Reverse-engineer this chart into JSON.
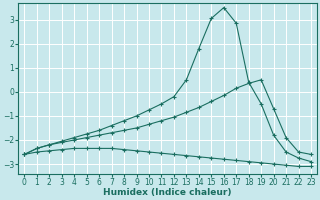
{
  "xlabel": "Humidex (Indice chaleur)",
  "bg_color": "#c8e8ec",
  "grid_color": "#b0d8dc",
  "line_color": "#1a6e60",
  "xlim": [
    -0.5,
    23.5
  ],
  "ylim": [
    -3.4,
    3.7
  ],
  "xticks": [
    0,
    1,
    2,
    3,
    4,
    5,
    6,
    7,
    8,
    9,
    10,
    11,
    12,
    13,
    14,
    15,
    16,
    17,
    18,
    19,
    20,
    21,
    22,
    23
  ],
  "yticks": [
    -3,
    -2,
    -1,
    0,
    1,
    2,
    3
  ],
  "line1_x": [
    0,
    1,
    2,
    3,
    4,
    5,
    6,
    7,
    8,
    9,
    10,
    11,
    12,
    13,
    14,
    15,
    16,
    17,
    18,
    19,
    20,
    21,
    22,
    23
  ],
  "line1_y": [
    -2.6,
    -2.35,
    -2.2,
    -2.05,
    -1.9,
    -1.75,
    -1.6,
    -1.4,
    -1.2,
    -1.0,
    -0.75,
    -0.5,
    -0.2,
    0.5,
    1.8,
    3.05,
    3.5,
    2.85,
    0.4,
    -0.5,
    -1.8,
    -2.5,
    -2.75,
    -2.9
  ],
  "line2_x": [
    0,
    1,
    2,
    3,
    4,
    5,
    6,
    7,
    8,
    9,
    10,
    11,
    12,
    13,
    14,
    15,
    16,
    17,
    18,
    19,
    20,
    21,
    22,
    23
  ],
  "line2_y": [
    -2.6,
    -2.35,
    -2.2,
    -2.1,
    -2.0,
    -1.9,
    -1.8,
    -1.7,
    -1.6,
    -1.5,
    -1.35,
    -1.2,
    -1.05,
    -0.85,
    -0.65,
    -0.4,
    -0.15,
    0.15,
    0.35,
    0.5,
    -0.7,
    -1.9,
    -2.5,
    -2.6
  ],
  "line3_x": [
    0,
    1,
    2,
    3,
    4,
    5,
    6,
    7,
    8,
    9,
    10,
    11,
    12,
    13,
    14,
    15,
    16,
    17,
    18,
    19,
    20,
    21,
    22,
    23
  ],
  "line3_y": [
    -2.6,
    -2.5,
    -2.45,
    -2.4,
    -2.35,
    -2.35,
    -2.35,
    -2.35,
    -2.4,
    -2.45,
    -2.5,
    -2.55,
    -2.6,
    -2.65,
    -2.7,
    -2.75,
    -2.8,
    -2.85,
    -2.9,
    -2.95,
    -3.0,
    -3.05,
    -3.1,
    -3.1
  ]
}
